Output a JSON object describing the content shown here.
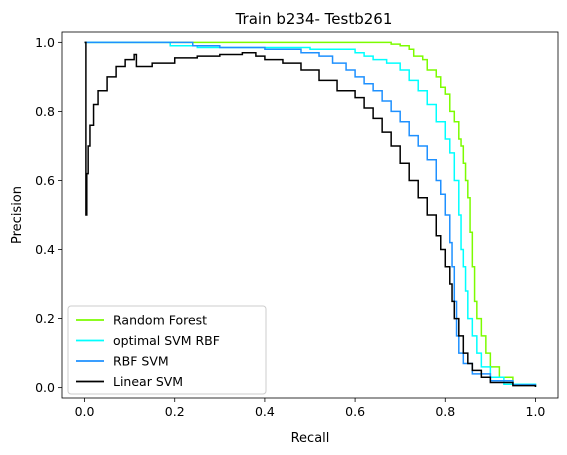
{
  "chart_data": {
    "type": "line",
    "title": "Train b234- Testb261",
    "xlabel": "Recall",
    "ylabel": "Precision",
    "xlim": [
      -0.05,
      1.05
    ],
    "ylim": [
      -0.03,
      1.03
    ],
    "xticks": [
      "0.0",
      "0.2",
      "0.4",
      "0.6",
      "0.8",
      "1.0"
    ],
    "xtick_values": [
      0,
      0.2,
      0.4,
      0.6,
      0.8,
      1.0
    ],
    "yticks": [
      "0.0",
      "0.2",
      "0.4",
      "0.6",
      "0.8",
      "1.0"
    ],
    "ytick_values": [
      0,
      0.2,
      0.4,
      0.6,
      0.8,
      1.0
    ],
    "grid": false,
    "legend_position": "lower-left",
    "series": [
      {
        "name": "Random Forest",
        "color": "#7cfc00",
        "points": [
          [
            0,
            1.0
          ],
          [
            0.1,
            1.0
          ],
          [
            0.3,
            1.0
          ],
          [
            0.5,
            1.0
          ],
          [
            0.65,
            1.0
          ],
          [
            0.68,
            0.995
          ],
          [
            0.7,
            0.99
          ],
          [
            0.72,
            0.98
          ],
          [
            0.73,
            0.96
          ],
          [
            0.75,
            0.95
          ],
          [
            0.76,
            0.92
          ],
          [
            0.78,
            0.9
          ],
          [
            0.79,
            0.87
          ],
          [
            0.8,
            0.85
          ],
          [
            0.81,
            0.8
          ],
          [
            0.82,
            0.77
          ],
          [
            0.83,
            0.72
          ],
          [
            0.835,
            0.7
          ],
          [
            0.84,
            0.65
          ],
          [
            0.845,
            0.6
          ],
          [
            0.85,
            0.55
          ],
          [
            0.855,
            0.45
          ],
          [
            0.86,
            0.35
          ],
          [
            0.865,
            0.25
          ],
          [
            0.87,
            0.2
          ],
          [
            0.88,
            0.15
          ],
          [
            0.89,
            0.1
          ],
          [
            0.9,
            0.06
          ],
          [
            0.92,
            0.03
          ],
          [
            0.95,
            0.01
          ],
          [
            1.0,
            0.003
          ]
        ]
      },
      {
        "name": "optimal SVM RBF",
        "color": "#00ffff",
        "points": [
          [
            0,
            1.0
          ],
          [
            0.18,
            1.0
          ],
          [
            0.19,
            0.99
          ],
          [
            0.25,
            0.985
          ],
          [
            0.35,
            0.985
          ],
          [
            0.45,
            0.985
          ],
          [
            0.5,
            0.98
          ],
          [
            0.55,
            0.98
          ],
          [
            0.6,
            0.97
          ],
          [
            0.62,
            0.96
          ],
          [
            0.64,
            0.95
          ],
          [
            0.67,
            0.94
          ],
          [
            0.7,
            0.92
          ],
          [
            0.72,
            0.89
          ],
          [
            0.74,
            0.86
          ],
          [
            0.76,
            0.82
          ],
          [
            0.78,
            0.77
          ],
          [
            0.8,
            0.72
          ],
          [
            0.81,
            0.68
          ],
          [
            0.82,
            0.6
          ],
          [
            0.83,
            0.5
          ],
          [
            0.835,
            0.4
          ],
          [
            0.84,
            0.35
          ],
          [
            0.845,
            0.28
          ],
          [
            0.85,
            0.2
          ],
          [
            0.86,
            0.15
          ],
          [
            0.87,
            0.1
          ],
          [
            0.88,
            0.06
          ],
          [
            0.9,
            0.03
          ],
          [
            0.93,
            0.01
          ],
          [
            1.0,
            0.003
          ]
        ]
      },
      {
        "name": "RBF SVM",
        "color": "#1e90ff",
        "points": [
          [
            0,
            1.0
          ],
          [
            0.22,
            1.0
          ],
          [
            0.24,
            0.99
          ],
          [
            0.3,
            0.985
          ],
          [
            0.4,
            0.98
          ],
          [
            0.48,
            0.97
          ],
          [
            0.52,
            0.96
          ],
          [
            0.55,
            0.94
          ],
          [
            0.58,
            0.92
          ],
          [
            0.6,
            0.9
          ],
          [
            0.62,
            0.88
          ],
          [
            0.64,
            0.86
          ],
          [
            0.66,
            0.83
          ],
          [
            0.68,
            0.8
          ],
          [
            0.7,
            0.77
          ],
          [
            0.72,
            0.73
          ],
          [
            0.74,
            0.7
          ],
          [
            0.76,
            0.66
          ],
          [
            0.78,
            0.6
          ],
          [
            0.79,
            0.56
          ],
          [
            0.8,
            0.5
          ],
          [
            0.81,
            0.42
          ],
          [
            0.815,
            0.35
          ],
          [
            0.82,
            0.25
          ],
          [
            0.825,
            0.15
          ],
          [
            0.83,
            0.1
          ],
          [
            0.84,
            0.07
          ],
          [
            0.86,
            0.04
          ],
          [
            0.9,
            0.02
          ],
          [
            0.95,
            0.008
          ],
          [
            1.0,
            0.003
          ]
        ]
      },
      {
        "name": "Linear SVM",
        "color": "#000000",
        "points": [
          [
            0,
            1.0
          ],
          [
            0.003,
            0.5
          ],
          [
            0.005,
            0.62
          ],
          [
            0.008,
            0.7
          ],
          [
            0.012,
            0.76
          ],
          [
            0.02,
            0.82
          ],
          [
            0.03,
            0.86
          ],
          [
            0.05,
            0.9
          ],
          [
            0.07,
            0.93
          ],
          [
            0.09,
            0.95
          ],
          [
            0.11,
            0.965
          ],
          [
            0.115,
            0.93
          ],
          [
            0.15,
            0.94
          ],
          [
            0.2,
            0.955
          ],
          [
            0.25,
            0.96
          ],
          [
            0.3,
            0.965
          ],
          [
            0.35,
            0.97
          ],
          [
            0.38,
            0.96
          ],
          [
            0.4,
            0.95
          ],
          [
            0.44,
            0.94
          ],
          [
            0.48,
            0.92
          ],
          [
            0.52,
            0.89
          ],
          [
            0.56,
            0.86
          ],
          [
            0.6,
            0.84
          ],
          [
            0.62,
            0.81
          ],
          [
            0.64,
            0.78
          ],
          [
            0.66,
            0.74
          ],
          [
            0.68,
            0.7
          ],
          [
            0.7,
            0.65
          ],
          [
            0.72,
            0.6
          ],
          [
            0.74,
            0.55
          ],
          [
            0.76,
            0.5
          ],
          [
            0.78,
            0.44
          ],
          [
            0.79,
            0.4
          ],
          [
            0.8,
            0.35
          ],
          [
            0.81,
            0.3
          ],
          [
            0.815,
            0.25
          ],
          [
            0.82,
            0.2
          ],
          [
            0.83,
            0.15
          ],
          [
            0.84,
            0.1
          ],
          [
            0.85,
            0.07
          ],
          [
            0.86,
            0.05
          ],
          [
            0.88,
            0.03
          ],
          [
            0.9,
            0.015
          ],
          [
            0.95,
            0.006
          ],
          [
            1.0,
            0.002
          ]
        ]
      }
    ]
  }
}
